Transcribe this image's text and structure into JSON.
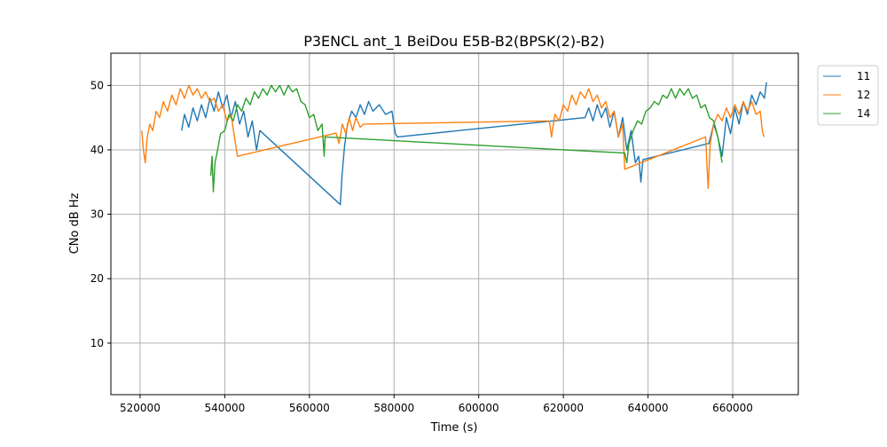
{
  "chart_data": {
    "type": "line",
    "title": "P3ENCL ant_1 BeiDou E5B-B2(BPSK(2)-B2)",
    "xlabel": "Time (s)",
    "ylabel": "CNo dB Hz",
    "xlim": [
      513100,
      675500
    ],
    "ylim": [
      2,
      55
    ],
    "xticks": [
      520000,
      540000,
      560000,
      580000,
      600000,
      620000,
      640000,
      660000
    ],
    "yticks": [
      10,
      20,
      30,
      40,
      50
    ],
    "grid": true,
    "legend_position": "outside-top-right",
    "series": [
      {
        "name": "11",
        "color": "#1f77b4",
        "points": [
          [
            529800,
            43
          ],
          [
            530500,
            45.5
          ],
          [
            531500,
            43.5
          ],
          [
            532500,
            46.5
          ],
          [
            533500,
            44.5
          ],
          [
            534500,
            47
          ],
          [
            535500,
            45
          ],
          [
            536500,
            48
          ],
          [
            537500,
            46
          ],
          [
            538500,
            49
          ],
          [
            539500,
            46.5
          ],
          [
            540500,
            48.5
          ],
          [
            541500,
            45
          ],
          [
            542500,
            47.5
          ],
          [
            543500,
            44
          ],
          [
            544500,
            46
          ],
          [
            545500,
            42
          ],
          [
            546500,
            44.5
          ],
          [
            547500,
            40
          ],
          [
            548300,
            43
          ],
          [
            567300,
            31.5
          ],
          [
            567700,
            36
          ],
          [
            568300,
            40.5
          ],
          [
            569000,
            44
          ],
          [
            570000,
            46
          ],
          [
            571000,
            45
          ],
          [
            572000,
            47
          ],
          [
            573000,
            45.5
          ],
          [
            574000,
            47.5
          ],
          [
            575000,
            46
          ],
          [
            576500,
            47
          ],
          [
            578000,
            45.5
          ],
          [
            579500,
            46
          ],
          [
            580300,
            42.5
          ],
          [
            580800,
            42
          ],
          [
            625100,
            45
          ],
          [
            626000,
            46.5
          ],
          [
            627000,
            44.5
          ],
          [
            628000,
            47
          ],
          [
            629000,
            45
          ],
          [
            630000,
            46.5
          ],
          [
            631000,
            43.5
          ],
          [
            632000,
            46
          ],
          [
            633000,
            42
          ],
          [
            634000,
            45
          ],
          [
            635000,
            40
          ],
          [
            636000,
            43
          ],
          [
            637000,
            38
          ],
          [
            637800,
            39
          ],
          [
            638300,
            35
          ],
          [
            638800,
            38.5
          ],
          [
            654400,
            41
          ],
          [
            655500,
            44
          ],
          [
            656500,
            42
          ],
          [
            657500,
            39
          ],
          [
            658500,
            45
          ],
          [
            659500,
            42.5
          ],
          [
            660500,
            46.5
          ],
          [
            661500,
            44
          ],
          [
            662500,
            47.5
          ],
          [
            663500,
            45.5
          ],
          [
            664500,
            48.5
          ],
          [
            665500,
            47
          ],
          [
            666500,
            49
          ],
          [
            667500,
            48
          ],
          [
            668000,
            50.5
          ]
        ]
      },
      {
        "name": "12",
        "color": "#ff7f0e",
        "points": [
          [
            520400,
            43
          ],
          [
            520800,
            40
          ],
          [
            521200,
            38
          ],
          [
            521700,
            42
          ],
          [
            522300,
            44
          ],
          [
            523000,
            43
          ],
          [
            523800,
            46
          ],
          [
            524600,
            45
          ],
          [
            525500,
            47.5
          ],
          [
            526500,
            46
          ],
          [
            527500,
            48.5
          ],
          [
            528500,
            47
          ],
          [
            529500,
            49.5
          ],
          [
            530500,
            48
          ],
          [
            531500,
            50
          ],
          [
            532500,
            48.5
          ],
          [
            533500,
            49.5
          ],
          [
            534500,
            48
          ],
          [
            535500,
            49
          ],
          [
            536500,
            47.5
          ],
          [
            537500,
            48
          ],
          [
            538500,
            46
          ],
          [
            539500,
            47
          ],
          [
            540500,
            44.5
          ],
          [
            541500,
            45.5
          ],
          [
            542300,
            42
          ],
          [
            543000,
            39
          ],
          [
            566300,
            42.6
          ],
          [
            567000,
            41
          ],
          [
            567800,
            44
          ],
          [
            568600,
            42.5
          ],
          [
            569400,
            45
          ],
          [
            570200,
            43
          ],
          [
            571000,
            45
          ],
          [
            572000,
            43.5
          ],
          [
            572800,
            44
          ],
          [
            616700,
            44.5
          ],
          [
            617200,
            42
          ],
          [
            618000,
            45.5
          ],
          [
            619000,
            44.5
          ],
          [
            620000,
            47
          ],
          [
            621000,
            46
          ],
          [
            622000,
            48.5
          ],
          [
            623000,
            47
          ],
          [
            624000,
            49
          ],
          [
            625100,
            48
          ],
          [
            626000,
            49.5
          ],
          [
            627000,
            47.5
          ],
          [
            628000,
            48.5
          ],
          [
            629000,
            46.5
          ],
          [
            630000,
            47.5
          ],
          [
            631000,
            45
          ],
          [
            632000,
            46
          ],
          [
            633000,
            42
          ],
          [
            634000,
            44
          ],
          [
            634500,
            37
          ],
          [
            653600,
            42
          ],
          [
            653900,
            38
          ],
          [
            654200,
            34
          ],
          [
            654700,
            41
          ],
          [
            655500,
            44
          ],
          [
            656500,
            45.5
          ],
          [
            657500,
            44.5
          ],
          [
            658500,
            46.5
          ],
          [
            659500,
            45
          ],
          [
            660500,
            47
          ],
          [
            661500,
            45.5
          ],
          [
            662500,
            47.5
          ],
          [
            663500,
            46
          ],
          [
            664500,
            47.5
          ],
          [
            665500,
            45.5
          ],
          [
            666500,
            46
          ],
          [
            667000,
            43
          ],
          [
            667400,
            42
          ]
        ]
      },
      {
        "name": "14",
        "color": "#2ca02c",
        "points": [
          [
            536700,
            36
          ],
          [
            537000,
            39
          ],
          [
            537300,
            33.5
          ],
          [
            537700,
            38
          ],
          [
            538300,
            40
          ],
          [
            539000,
            42.5
          ],
          [
            540000,
            43
          ],
          [
            541000,
            45.5
          ],
          [
            542000,
            44.5
          ],
          [
            543000,
            47
          ],
          [
            544000,
            46
          ],
          [
            545000,
            48
          ],
          [
            546000,
            47
          ],
          [
            547000,
            49
          ],
          [
            548000,
            48
          ],
          [
            549000,
            49.5
          ],
          [
            550000,
            48.5
          ],
          [
            551000,
            50
          ],
          [
            552000,
            49
          ],
          [
            553000,
            50
          ],
          [
            554000,
            48.5
          ],
          [
            555000,
            50
          ],
          [
            556000,
            49
          ],
          [
            557000,
            49.5
          ],
          [
            558000,
            47.5
          ],
          [
            559000,
            47
          ],
          [
            560000,
            45
          ],
          [
            561000,
            45.5
          ],
          [
            562000,
            43
          ],
          [
            563000,
            44
          ],
          [
            563500,
            39
          ],
          [
            563700,
            42
          ],
          [
            634500,
            39.5
          ],
          [
            635000,
            38
          ],
          [
            635500,
            41
          ],
          [
            636500,
            43
          ],
          [
            637500,
            44.5
          ],
          [
            638500,
            44
          ],
          [
            639500,
            46
          ],
          [
            640500,
            46.5
          ],
          [
            641500,
            47.5
          ],
          [
            642500,
            47
          ],
          [
            643500,
            48.5
          ],
          [
            644500,
            48
          ],
          [
            645500,
            49.5
          ],
          [
            646500,
            48
          ],
          [
            647500,
            49.5
          ],
          [
            648500,
            48.5
          ],
          [
            649500,
            49.5
          ],
          [
            650500,
            48
          ],
          [
            651500,
            48.5
          ],
          [
            652500,
            46.5
          ],
          [
            653500,
            47
          ],
          [
            654500,
            45
          ],
          [
            655500,
            44.5
          ],
          [
            656500,
            42
          ],
          [
            657000,
            40
          ],
          [
            657500,
            38
          ]
        ]
      }
    ]
  }
}
